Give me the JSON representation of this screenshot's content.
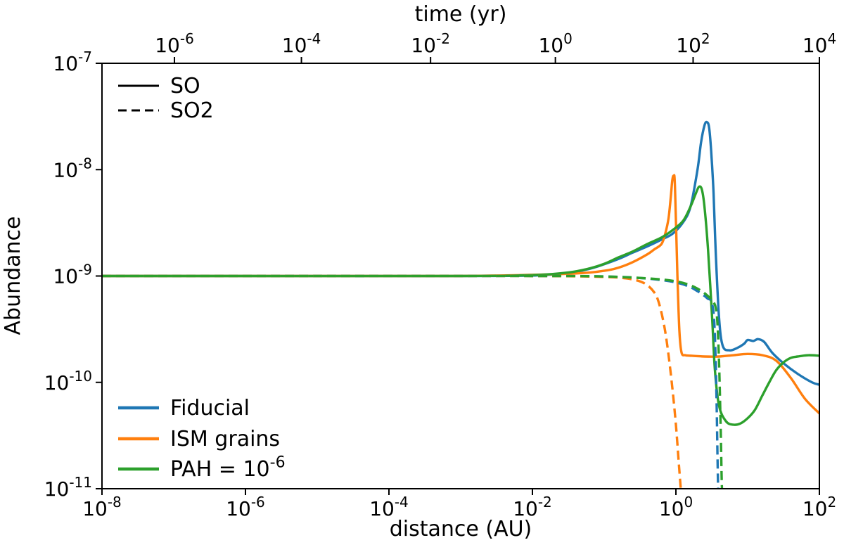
{
  "figure": {
    "background": "#ffffff",
    "axis_color": "#000000",
    "text_color": "#000000"
  },
  "chart_data": {
    "type": "line",
    "title": "",
    "xlabel": "distance (AU)",
    "ylabel": "Abundance",
    "top_axis_label": "time (yr)",
    "xscale": "log",
    "yscale": "log",
    "xlim": [
      1e-08,
      100
    ],
    "ylim": [
      1e-11,
      1e-07
    ],
    "grid": false,
    "x_ticks": [
      {
        "value": 1e-08,
        "label": "10^-8"
      },
      {
        "value": 1e-06,
        "label": "10^-6"
      },
      {
        "value": 0.0001,
        "label": "10^-4"
      },
      {
        "value": 0.01,
        "label": "10^-2"
      },
      {
        "value": 1,
        "label": "10^0"
      },
      {
        "value": 100,
        "label": "10^2"
      }
    ],
    "y_ticks": [
      {
        "value": 1e-07,
        "label": "10^-7"
      },
      {
        "value": 1e-08,
        "label": "10^-8"
      },
      {
        "value": 1e-09,
        "label": "10^-9"
      },
      {
        "value": 1e-10,
        "label": "10^-10"
      },
      {
        "value": 1e-11,
        "label": "10^-11"
      }
    ],
    "top_ticks": [
      {
        "pos": 0.101,
        "label": "10^-6"
      },
      {
        "pos": 0.278,
        "label": "10^-4"
      },
      {
        "pos": 0.458,
        "label": "10^-2"
      },
      {
        "pos": 0.632,
        "label": "10^0"
      },
      {
        "pos": 0.824,
        "label": "10^2"
      },
      {
        "pos": 1.0,
        "label": "10^4"
      }
    ],
    "legend_linestyles": {
      "position": "upper-left",
      "items": [
        {
          "label": "SO",
          "dash": "solid",
          "color": "#000000"
        },
        {
          "label": "SO2",
          "dash": "dashed",
          "color": "#000000"
        }
      ]
    },
    "legend_models": {
      "position": "lower-left",
      "items": [
        {
          "label": "Fiducial",
          "color": "#1f77b4"
        },
        {
          "label": "ISM grains",
          "color": "#ff7f0e"
        },
        {
          "label": "PAH = 10^-6",
          "color": "#2ca02c"
        }
      ]
    },
    "series": [
      {
        "name": "SO Fiducial",
        "molecule": "SO",
        "model": "Fiducial",
        "color": "#1f77b4",
        "dash": "solid",
        "points": [
          [
            1e-08,
            1e-09
          ],
          [
            1e-06,
            1e-09
          ],
          [
            0.0001,
            1e-09
          ],
          [
            0.001,
            1e-09
          ],
          [
            0.01,
            1.01e-09
          ],
          [
            0.032,
            1.07e-09
          ],
          [
            0.063,
            1.17e-09
          ],
          [
            0.1,
            1.29e-09
          ],
          [
            0.16,
            1.45e-09
          ],
          [
            0.25,
            1.66e-09
          ],
          [
            0.4,
            1.9e-09
          ],
          [
            0.63,
            2.2e-09
          ],
          [
            0.9,
            2.5e-09
          ],
          [
            1.26,
            3.2e-09
          ],
          [
            1.6,
            4.5e-09
          ],
          [
            2.0,
            1e-08
          ],
          [
            2.24,
            1.8e-08
          ],
          [
            2.5,
            2.6e-08
          ],
          [
            2.7,
            2.8e-08
          ],
          [
            2.9,
            2.5e-08
          ],
          [
            3.1,
            1.5e-08
          ],
          [
            3.35,
            6e-09
          ],
          [
            3.6,
            1.6e-09
          ],
          [
            4.0,
            4e-10
          ],
          [
            4.5,
            2.2e-10
          ],
          [
            5.6,
            2e-10
          ],
          [
            7.1,
            2.1e-10
          ],
          [
            8.9,
            2.3e-10
          ],
          [
            10,
            2.5e-10
          ],
          [
            12,
            2.45e-10
          ],
          [
            14,
            2.55e-10
          ],
          [
            17,
            2.4e-10
          ],
          [
            22,
            1.9e-10
          ],
          [
            32,
            1.5e-10
          ],
          [
            50,
            1.2e-10
          ],
          [
            79,
            1e-10
          ],
          [
            100,
            9.5e-11
          ]
        ]
      },
      {
        "name": "SO ISM grains",
        "molecule": "SO",
        "model": "ISM grains",
        "color": "#ff7f0e",
        "dash": "solid",
        "points": [
          [
            1e-08,
            1e-09
          ],
          [
            1e-05,
            1e-09
          ],
          [
            0.001,
            1e-09
          ],
          [
            0.032,
            1.05e-09
          ],
          [
            0.1,
            1.12e-09
          ],
          [
            0.16,
            1.2e-09
          ],
          [
            0.25,
            1.35e-09
          ],
          [
            0.4,
            1.6e-09
          ],
          [
            0.5,
            1.78e-09
          ],
          [
            0.63,
            2e-09
          ],
          [
            0.71,
            2.5e-09
          ],
          [
            0.79,
            3.5e-09
          ],
          [
            0.85,
            5.6e-09
          ],
          [
            0.89,
            7.9e-09
          ],
          [
            0.93,
            8.7e-09
          ],
          [
            0.97,
            7e-09
          ],
          [
            1.05,
            1e-09
          ],
          [
            1.12,
            3e-10
          ],
          [
            1.2,
            1.9e-10
          ],
          [
            1.35,
            1.8e-10
          ],
          [
            1.6,
            1.78e-10
          ],
          [
            2.5,
            1.75e-10
          ],
          [
            4,
            1.75e-10
          ],
          [
            6.3,
            1.8e-10
          ],
          [
            10,
            1.85e-10
          ],
          [
            16,
            1.8e-10
          ],
          [
            25,
            1.6e-10
          ],
          [
            40,
            1.1e-10
          ],
          [
            63,
            7e-11
          ],
          [
            100,
            5.1e-11
          ]
        ]
      },
      {
        "name": "SO PAH = 10^-6",
        "molecule": "SO",
        "model": "PAH = 10^-6",
        "color": "#2ca02c",
        "dash": "solid",
        "points": [
          [
            1e-08,
            1e-09
          ],
          [
            1e-06,
            1e-09
          ],
          [
            0.001,
            1e-09
          ],
          [
            0.01,
            1.02e-09
          ],
          [
            0.032,
            1.08e-09
          ],
          [
            0.063,
            1.18e-09
          ],
          [
            0.1,
            1.3e-09
          ],
          [
            0.16,
            1.5e-09
          ],
          [
            0.25,
            1.7e-09
          ],
          [
            0.4,
            2e-09
          ],
          [
            0.63,
            2.3e-09
          ],
          [
            0.9,
            2.7e-09
          ],
          [
            1.26,
            3.3e-09
          ],
          [
            1.6,
            4.5e-09
          ],
          [
            1.9,
            6e-09
          ],
          [
            2.1,
            6.9e-09
          ],
          [
            2.3,
            6.5e-09
          ],
          [
            2.5,
            4.5e-09
          ],
          [
            2.8,
            1.8e-09
          ],
          [
            3.2,
            4e-10
          ],
          [
            3.5,
            1.3e-10
          ],
          [
            4.0,
            6e-11
          ],
          [
            5.0,
            4.3e-11
          ],
          [
            6.3,
            4e-11
          ],
          [
            7.9,
            4.1e-11
          ],
          [
            10,
            4.6e-11
          ],
          [
            12.6,
            5.5e-11
          ],
          [
            16,
            7.5e-11
          ],
          [
            20,
            1e-10
          ],
          [
            25,
            1.3e-10
          ],
          [
            32,
            1.55e-10
          ],
          [
            40,
            1.7e-10
          ],
          [
            50,
            1.75e-10
          ],
          [
            70,
            1.8e-10
          ],
          [
            100,
            1.78e-10
          ]
        ]
      },
      {
        "name": "SO2 Fiducial",
        "molecule": "SO2",
        "model": "Fiducial",
        "color": "#1f77b4",
        "dash": "dashed",
        "points": [
          [
            1e-08,
            1e-09
          ],
          [
            1e-05,
            1e-09
          ],
          [
            0.01,
            1e-09
          ],
          [
            0.1,
            9.9e-10
          ],
          [
            0.3,
            9.6e-10
          ],
          [
            0.6,
            9.2e-10
          ],
          [
            1.0,
            8.7e-10
          ],
          [
            1.5,
            8e-10
          ],
          [
            2.0,
            7.2e-10
          ],
          [
            2.5,
            6.5e-10
          ],
          [
            2.8,
            6.1e-10
          ],
          [
            3.0,
            6e-10
          ],
          [
            3.2,
            5.5e-10
          ],
          [
            3.4,
            4e-10
          ],
          [
            3.55,
            2e-10
          ],
          [
            3.7,
            6e-11
          ],
          [
            3.8,
            2e-11
          ],
          [
            3.9,
            8e-12
          ]
        ]
      },
      {
        "name": "SO2 ISM grains",
        "molecule": "SO2",
        "model": "ISM grains",
        "color": "#ff7f0e",
        "dash": "dashed",
        "points": [
          [
            1e-08,
            1e-09
          ],
          [
            1e-05,
            1e-09
          ],
          [
            0.01,
            1e-09
          ],
          [
            0.1,
            9.8e-10
          ],
          [
            0.2,
            9.5e-10
          ],
          [
            0.3,
            9e-10
          ],
          [
            0.4,
            8.2e-10
          ],
          [
            0.5,
            7e-10
          ],
          [
            0.56,
            6e-10
          ],
          [
            0.63,
            4.5e-10
          ],
          [
            0.71,
            3e-10
          ],
          [
            0.79,
            1.8e-10
          ],
          [
            0.89,
            9e-11
          ],
          [
            1.0,
            4e-11
          ],
          [
            1.1,
            1.7e-11
          ],
          [
            1.2,
            8e-12
          ]
        ]
      },
      {
        "name": "SO2 PAH = 10^-6",
        "molecule": "SO2",
        "model": "PAH = 10^-6",
        "color": "#2ca02c",
        "dash": "dashed",
        "points": [
          [
            1e-08,
            1e-09
          ],
          [
            1e-05,
            1e-09
          ],
          [
            0.01,
            1e-09
          ],
          [
            0.1,
            9.9e-10
          ],
          [
            0.5,
            9.4e-10
          ],
          [
            1.0,
            8.9e-10
          ],
          [
            1.5,
            8.3e-10
          ],
          [
            2.0,
            7.6e-10
          ],
          [
            2.5,
            6.9e-10
          ],
          [
            3.0,
            6.2e-10
          ],
          [
            3.3,
            5.8e-10
          ],
          [
            3.6,
            5e-10
          ],
          [
            3.8,
            3.5e-10
          ],
          [
            4.0,
            1.5e-10
          ],
          [
            4.2,
            4e-11
          ],
          [
            4.35,
            1.2e-11
          ],
          [
            4.45,
            8e-12
          ]
        ]
      }
    ]
  }
}
